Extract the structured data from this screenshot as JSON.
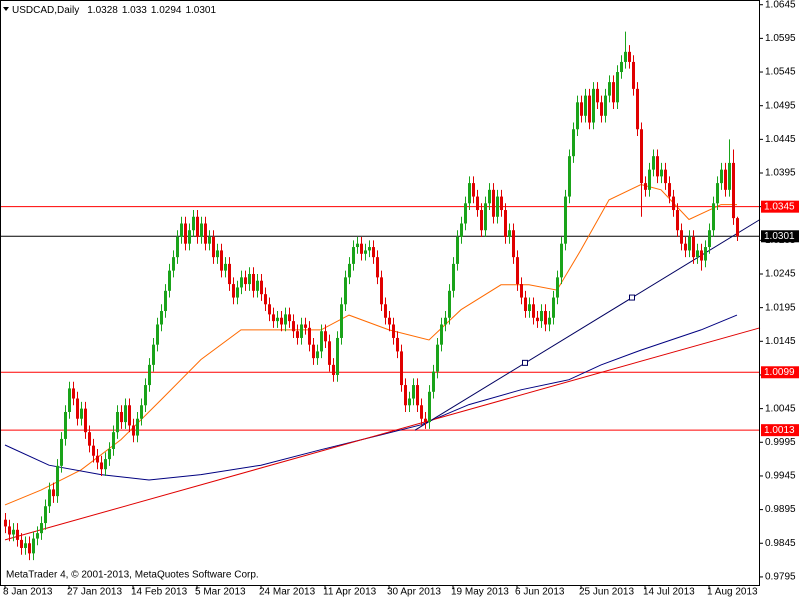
{
  "chart_data": {
    "type": "candlestick",
    "symbol": "USDCAD,Daily",
    "footer": "MetaTrader 4, © 2001-2013, MetaQuotes Software Corp.",
    "up_color": "#1aa31a",
    "down_color": "#e00000",
    "xlim": [
      -1.25,
      188.75
    ],
    "ylim": [
      0.9783,
      1.0652
    ],
    "yticks": [
      1.0645,
      1.0595,
      1.0545,
      1.0495,
      1.0445,
      1.0395,
      1.0345,
      1.0295,
      1.0245,
      1.0195,
      1.0145,
      1.0095,
      1.0045,
      0.9995,
      0.9945,
      0.9895,
      0.9845,
      0.9795
    ],
    "xticks": [
      {
        "value": 0,
        "label": "8 Jan 2013"
      },
      {
        "value": 16,
        "label": "27 Jan 2013"
      },
      {
        "value": 32,
        "label": "14 Feb 2013"
      },
      {
        "value": 48,
        "label": "5 Mar 2013"
      },
      {
        "value": 64,
        "label": "24 Mar 2013"
      },
      {
        "value": 80,
        "label": "11 Apr 2013"
      },
      {
        "value": 96,
        "label": "30 Apr 2013"
      },
      {
        "value": 112,
        "label": "19 May 2013"
      },
      {
        "value": 128,
        "label": "6 Jun 2013"
      },
      {
        "value": 144,
        "label": "25 Jun 2013"
      },
      {
        "value": 160,
        "label": "14 Jul 2013"
      },
      {
        "value": 176,
        "label": "1 Aug 2013"
      }
    ],
    "ohlc": [
      [
        0.988,
        0.989,
        0.986,
        0.987
      ],
      [
        0.987,
        0.988,
        0.9848,
        0.9858
      ],
      [
        0.9858,
        0.9875,
        0.9848,
        0.9865
      ],
      [
        0.9865,
        0.9875,
        0.984,
        0.985
      ],
      [
        0.985,
        0.986,
        0.9828,
        0.9838
      ],
      [
        0.9838,
        0.9855,
        0.9828,
        0.9845
      ],
      [
        0.9845,
        0.9855,
        0.982,
        0.983
      ],
      [
        0.983,
        0.9862,
        0.982,
        0.9852
      ],
      [
        0.9852,
        0.987,
        0.9842,
        0.986
      ],
      [
        0.986,
        0.9885,
        0.985,
        0.9875
      ],
      [
        0.9875,
        0.991,
        0.9865,
        0.99
      ],
      [
        0.99,
        0.9935,
        0.989,
        0.9925
      ],
      [
        0.9925,
        0.9935,
        0.9905,
        0.9915
      ],
      [
        0.9915,
        0.997,
        0.9905,
        0.996
      ],
      [
        0.996,
        1.001,
        0.995,
        1.0
      ],
      [
        1.0,
        1.005,
        0.999,
        1.004
      ],
      [
        1.004,
        1.0085,
        1.003,
        1.0075
      ],
      [
        1.0075,
        1.0085,
        1.005,
        1.006
      ],
      [
        1.006,
        1.007,
        1.002,
        1.003
      ],
      [
        1.003,
        1.0055,
        1.002,
        1.0045
      ],
      [
        1.0045,
        1.0055,
        1.0,
        1.001
      ],
      [
        1.001,
        1.002,
        0.998,
        0.999
      ],
      [
        0.999,
        1.0,
        0.9965,
        0.9975
      ],
      [
        0.9975,
        0.9985,
        0.9955,
        0.9965
      ],
      [
        0.9965,
        0.9975,
        0.9945,
        0.9955
      ],
      [
        0.9955,
        0.998,
        0.9945,
        0.997
      ],
      [
        0.997,
        0.9995,
        0.996,
        0.9985
      ],
      [
        0.9985,
        1.002,
        0.9975,
        1.001
      ],
      [
        1.001,
        1.005,
        1.0,
        1.004
      ],
      [
        1.004,
        1.005,
        1.0015,
        1.0025
      ],
      [
        1.0025,
        1.006,
        1.0015,
        1.005
      ],
      [
        1.005,
        1.006,
        1.001,
        1.002
      ],
      [
        1.002,
        1.003,
        0.9995,
        1.0005
      ],
      [
        1.0005,
        1.004,
        0.9995,
        1.003
      ],
      [
        1.003,
        1.006,
        1.002,
        1.005
      ],
      [
        1.005,
        1.009,
        1.004,
        1.008
      ],
      [
        1.008,
        1.012,
        1.007,
        1.011
      ],
      [
        1.011,
        1.015,
        1.01,
        1.014
      ],
      [
        1.014,
        1.018,
        1.013,
        1.017
      ],
      [
        1.017,
        1.02,
        1.016,
        1.019
      ],
      [
        1.019,
        1.023,
        1.018,
        1.022
      ],
      [
        1.022,
        1.026,
        1.021,
        1.025
      ],
      [
        1.025,
        1.028,
        1.024,
        1.027
      ],
      [
        1.027,
        1.031,
        1.026,
        1.03
      ],
      [
        1.03,
        1.033,
        1.029,
        1.032
      ],
      [
        1.032,
        1.033,
        1.028,
        1.029
      ],
      [
        1.029,
        1.032,
        1.028,
        1.031
      ],
      [
        1.031,
        1.034,
        1.03,
        1.033
      ],
      [
        1.033,
        1.034,
        1.029,
        1.03
      ],
      [
        1.03,
        1.033,
        1.029,
        1.032
      ],
      [
        1.032,
        1.033,
        1.028,
        1.029
      ],
      [
        1.029,
        1.031,
        1.028,
        1.03
      ],
      [
        1.03,
        1.031,
        1.026,
        1.027
      ],
      [
        1.027,
        1.029,
        1.026,
        1.028
      ],
      [
        1.028,
        1.029,
        1.024,
        1.025
      ],
      [
        1.025,
        1.027,
        1.024,
        1.026
      ],
      [
        1.026,
        1.027,
        1.022,
        1.023
      ],
      [
        1.023,
        1.024,
        1.02,
        1.021
      ],
      [
        1.021,
        1.0235,
        1.02,
        1.0225
      ],
      [
        1.0225,
        1.025,
        1.0215,
        1.024
      ],
      [
        1.024,
        1.025,
        1.022,
        1.023
      ],
      [
        1.023,
        1.0255,
        1.022,
        1.0245
      ],
      [
        1.0245,
        1.0255,
        1.021,
        1.022
      ],
      [
        1.022,
        1.0245,
        1.021,
        1.0235
      ],
      [
        1.0235,
        1.0245,
        1.0205,
        1.0215
      ],
      [
        1.0215,
        1.0225,
        1.019,
        1.02
      ],
      [
        1.02,
        1.021,
        1.0175,
        1.0185
      ],
      [
        1.0185,
        1.0195,
        1.0165,
        1.0175
      ],
      [
        1.0175,
        1.019,
        1.0165,
        1.018
      ],
      [
        1.018,
        1.019,
        1.016,
        1.017
      ],
      [
        1.017,
        1.0195,
        1.016,
        1.0185
      ],
      [
        1.0185,
        1.0195,
        1.0165,
        1.0175
      ],
      [
        1.0175,
        1.0185,
        1.015,
        1.016
      ],
      [
        1.016,
        1.017,
        1.014,
        1.015
      ],
      [
        1.015,
        1.018,
        1.014,
        1.017
      ],
      [
        1.017,
        1.018,
        1.0155,
        1.0165
      ],
      [
        1.0165,
        1.0175,
        1.013,
        1.014
      ],
      [
        1.014,
        1.015,
        1.011,
        1.012
      ],
      [
        1.012,
        1.014,
        1.011,
        1.013
      ],
      [
        1.013,
        1.017,
        1.012,
        1.016
      ],
      [
        1.016,
        1.017,
        1.0135,
        1.0145
      ],
      [
        1.0145,
        1.0155,
        1.01,
        1.011
      ],
      [
        1.011,
        1.012,
        1.0085,
        1.0095
      ],
      [
        1.0095,
        1.016,
        1.0085,
        1.015
      ],
      [
        1.015,
        1.021,
        1.014,
        1.02
      ],
      [
        1.02,
        1.025,
        1.019,
        1.024
      ],
      [
        1.024,
        1.027,
        1.023,
        1.026
      ],
      [
        1.026,
        1.0295,
        1.025,
        1.0285
      ],
      [
        1.0285,
        1.03,
        1.0275,
        1.029
      ],
      [
        1.029,
        1.03,
        1.0265,
        1.0275
      ],
      [
        1.0275,
        1.029,
        1.0265,
        1.028
      ],
      [
        1.028,
        1.0295,
        1.027,
        1.0285
      ],
      [
        1.0285,
        1.0295,
        1.026,
        1.027
      ],
      [
        1.027,
        1.028,
        1.023,
        1.024
      ],
      [
        1.024,
        1.025,
        1.019,
        1.02
      ],
      [
        1.02,
        1.021,
        1.017,
        1.018
      ],
      [
        1.018,
        1.019,
        1.016,
        1.017
      ],
      [
        1.017,
        1.018,
        1.014,
        1.015
      ],
      [
        1.015,
        1.016,
        1.012,
        1.013
      ],
      [
        1.013,
        1.014,
        1.007,
        1.008
      ],
      [
        1.008,
        1.009,
        1.004,
        1.005
      ],
      [
        1.005,
        1.007,
        1.004,
        1.006
      ],
      [
        1.006,
        1.009,
        1.005,
        1.008
      ],
      [
        1.008,
        1.009,
        1.004,
        1.005
      ],
      [
        1.005,
        1.006,
        1.002,
        1.003
      ],
      [
        1.003,
        1.004,
        1.0015,
        1.0025
      ],
      [
        1.0025,
        1.008,
        1.0015,
        1.007
      ],
      [
        1.007,
        1.011,
        1.006,
        1.01
      ],
      [
        1.01,
        1.015,
        1.009,
        1.014
      ],
      [
        1.014,
        1.018,
        1.013,
        1.017
      ],
      [
        1.017,
        1.019,
        1.016,
        1.018
      ],
      [
        1.018,
        1.023,
        1.017,
        1.022
      ],
      [
        1.022,
        1.027,
        1.021,
        1.026
      ],
      [
        1.026,
        1.031,
        1.025,
        1.03
      ],
      [
        1.03,
        1.033,
        1.029,
        1.032
      ],
      [
        1.032,
        1.036,
        1.031,
        1.035
      ],
      [
        1.035,
        1.039,
        1.034,
        1.038
      ],
      [
        1.038,
        1.039,
        1.035,
        1.036
      ],
      [
        1.036,
        1.037,
        1.033,
        1.034
      ],
      [
        1.034,
        1.035,
        1.03,
        1.031
      ],
      [
        1.031,
        1.036,
        1.03,
        1.035
      ],
      [
        1.035,
        1.038,
        1.034,
        1.037
      ],
      [
        1.037,
        1.038,
        1.032,
        1.033
      ],
      [
        1.033,
        1.037,
        1.032,
        1.036
      ],
      [
        1.036,
        1.037,
        1.033,
        1.034
      ],
      [
        1.034,
        1.035,
        1.029,
        1.03
      ],
      [
        1.03,
        1.032,
        1.029,
        1.031
      ],
      [
        1.031,
        1.032,
        1.026,
        1.027
      ],
      [
        1.027,
        1.028,
        1.022,
        1.023
      ],
      [
        1.023,
        1.024,
        1.02,
        1.021
      ],
      [
        1.021,
        1.022,
        1.018,
        1.019
      ],
      [
        1.019,
        1.021,
        1.018,
        1.02
      ],
      [
        1.02,
        1.021,
        1.017,
        1.018
      ],
      [
        1.018,
        1.019,
        1.0165,
        1.0175
      ],
      [
        1.0175,
        1.02,
        1.0165,
        1.019
      ],
      [
        1.019,
        1.02,
        1.016,
        1.017
      ],
      [
        1.017,
        1.019,
        1.016,
        1.018
      ],
      [
        1.018,
        1.022,
        1.017,
        1.021
      ],
      [
        1.021,
        1.025,
        1.02,
        1.024
      ],
      [
        1.024,
        1.03,
        1.023,
        1.029
      ],
      [
        1.029,
        1.037,
        1.028,
        1.036
      ],
      [
        1.036,
        1.043,
        1.035,
        1.042
      ],
      [
        1.042,
        1.047,
        1.041,
        1.046
      ],
      [
        1.046,
        1.051,
        1.045,
        1.05
      ],
      [
        1.05,
        1.051,
        1.047,
        1.048
      ],
      [
        1.048,
        1.052,
        1.047,
        1.051
      ],
      [
        1.051,
        1.052,
        1.046,
        1.047
      ],
      [
        1.047,
        1.053,
        1.046,
        1.052
      ],
      [
        1.052,
        1.053,
        1.049,
        1.05
      ],
      [
        1.05,
        1.051,
        1.047,
        1.048
      ],
      [
        1.048,
        1.052,
        1.047,
        1.051
      ],
      [
        1.051,
        1.054,
        1.05,
        1.053
      ],
      [
        1.053,
        1.054,
        1.049,
        1.05
      ],
      [
        1.05,
        1.0555,
        1.049,
        1.0545
      ],
      [
        1.0545,
        1.057,
        1.0535,
        1.056
      ],
      [
        1.056,
        1.0605,
        1.055,
        1.0575
      ],
      [
        1.0575,
        1.0585,
        1.055,
        1.056
      ],
      [
        1.056,
        1.057,
        1.051,
        1.052
      ],
      [
        1.052,
        1.053,
        1.045,
        1.046
      ],
      [
        1.046,
        1.047,
        1.033,
        1.038
      ],
      [
        1.038,
        1.039,
        1.036,
        1.037
      ],
      [
        1.037,
        1.041,
        1.036,
        1.04
      ],
      [
        1.04,
        1.043,
        1.039,
        1.042
      ],
      [
        1.042,
        1.043,
        1.038,
        1.039
      ],
      [
        1.039,
        1.041,
        1.038,
        1.04
      ],
      [
        1.04,
        1.041,
        1.037,
        1.038
      ],
      [
        1.038,
        1.039,
        1.035,
        1.036
      ],
      [
        1.036,
        1.037,
        1.033,
        1.034
      ],
      [
        1.034,
        1.035,
        1.03,
        1.031
      ],
      [
        1.031,
        1.032,
        1.028,
        1.029
      ],
      [
        1.029,
        1.03,
        1.027,
        1.028
      ],
      [
        1.028,
        1.031,
        1.027,
        1.03
      ],
      [
        1.03,
        1.031,
        1.026,
        1.027
      ],
      [
        1.027,
        1.029,
        1.026,
        1.028
      ],
      [
        1.028,
        1.029,
        1.025,
        1.0265
      ],
      [
        1.0265,
        1.0295,
        1.0255,
        1.0285
      ],
      [
        1.0285,
        1.032,
        1.0275,
        1.031
      ],
      [
        1.031,
        1.036,
        1.03,
        1.035
      ],
      [
        1.035,
        1.039,
        1.034,
        1.038
      ],
      [
        1.038,
        1.041,
        1.037,
        1.04
      ],
      [
        1.04,
        1.041,
        1.036,
        1.037
      ],
      [
        1.037,
        1.0445,
        1.036,
        1.041
      ],
      [
        1.041,
        1.043,
        1.0318,
        1.0328
      ],
      [
        1.0328,
        1.033,
        1.0294,
        1.0301
      ]
    ],
    "lines": [
      {
        "color": "#ff6a00",
        "x": [
          0,
          9,
          19,
          29,
          39,
          49,
          59,
          69,
          79,
          86,
          96,
          106,
          114,
          124,
          131,
          138,
          144,
          151,
          159,
          164,
          171,
          179,
          183
        ],
        "values": [
          0.9902,
          0.9924,
          0.9954,
          0.9999,
          1.0058,
          1.0118,
          1.0162,
          1.0162,
          1.0162,
          1.0184,
          1.0162,
          1.0147,
          1.0192,
          1.0229,
          1.0229,
          1.0221,
          1.0281,
          1.0355,
          1.0378,
          1.037,
          1.0326,
          1.0348,
          1.0348
        ]
      },
      {
        "color": "#000080",
        "x": [
          0,
          11,
          24,
          36,
          49,
          64,
          79,
          94,
          104,
          116,
          129,
          141,
          149,
          159,
          174,
          183
        ],
        "values": [
          0.9991,
          0.9961,
          0.9947,
          0.9939,
          0.9947,
          0.9961,
          0.9984,
          1.0006,
          1.0021,
          1.0051,
          1.0073,
          1.0088,
          1.011,
          1.0132,
          1.0162,
          1.0184
        ]
      }
    ],
    "trendlines": [
      {
        "color": "#e00000",
        "x": [
          0,
          188.75
        ],
        "values": [
          0.985,
          1.0165
        ]
      },
      {
        "color": "#000060",
        "x": [
          102.5,
          188.75
        ],
        "values": [
          1.0013,
          1.0326
        ],
        "handles_x": [
          130,
          156.75
        ],
        "handles": [
          1.0113,
          1.021
        ]
      }
    ],
    "level_color": "#ff0000",
    "levels": [
      1.0345,
      1.0099,
      1.0013
    ],
    "bid_color": "#000000"
  }
}
